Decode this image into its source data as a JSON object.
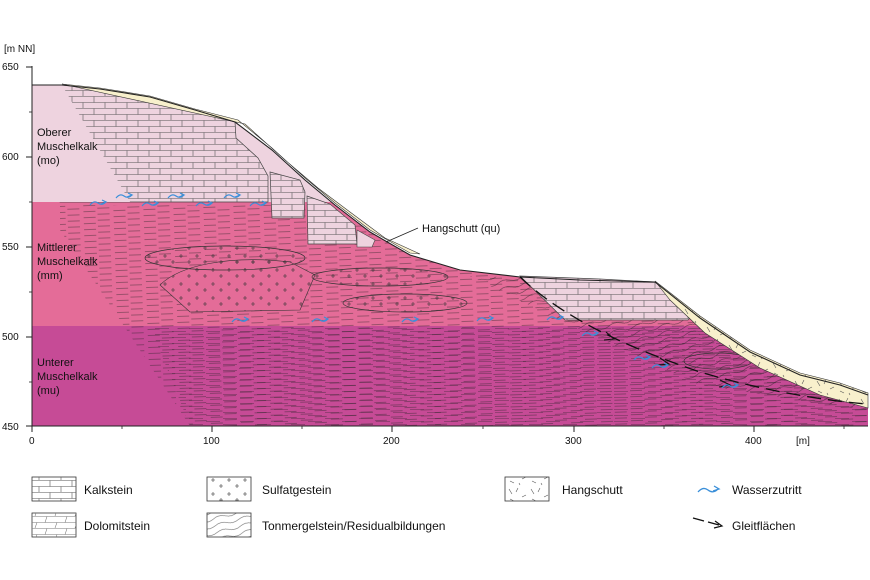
{
  "axes": {
    "y_unit": "[m NN]",
    "x_unit": "[m]",
    "y_ticks": [
      "650",
      "600",
      "550",
      "500",
      "450"
    ],
    "x_ticks": [
      "0",
      "100",
      "200",
      "300",
      "400"
    ]
  },
  "zones": {
    "mo": {
      "lines": [
        "Oberer",
        "Muschelkalk",
        "(mo)"
      ],
      "color": "#eed3df"
    },
    "mm": {
      "lines": [
        "Mittlerer",
        "Muschelkalk",
        "(mm)"
      ],
      "color": "#e46c98"
    },
    "mu": {
      "lines": [
        "Unterer",
        "Muschelkalk",
        "(mu)"
      ],
      "color": "#c64b96"
    }
  },
  "callout": {
    "text": "Hangschutt (qu)"
  },
  "colors": {
    "scree": "#f8f0cc",
    "water": "#3a8fd9",
    "outline": "#222222"
  },
  "legend": {
    "kalkstein": "Kalkstein",
    "dolomitstein": "Dolomitstein",
    "sulfatgestein": "Sulfatgestein",
    "tonmergel": "Tonmergelstein/Residualbildungen",
    "hangschutt": "Hangschutt",
    "wasserzutritt": "Wasserzutritt",
    "gleitflaechen": "Gleitflächen"
  }
}
